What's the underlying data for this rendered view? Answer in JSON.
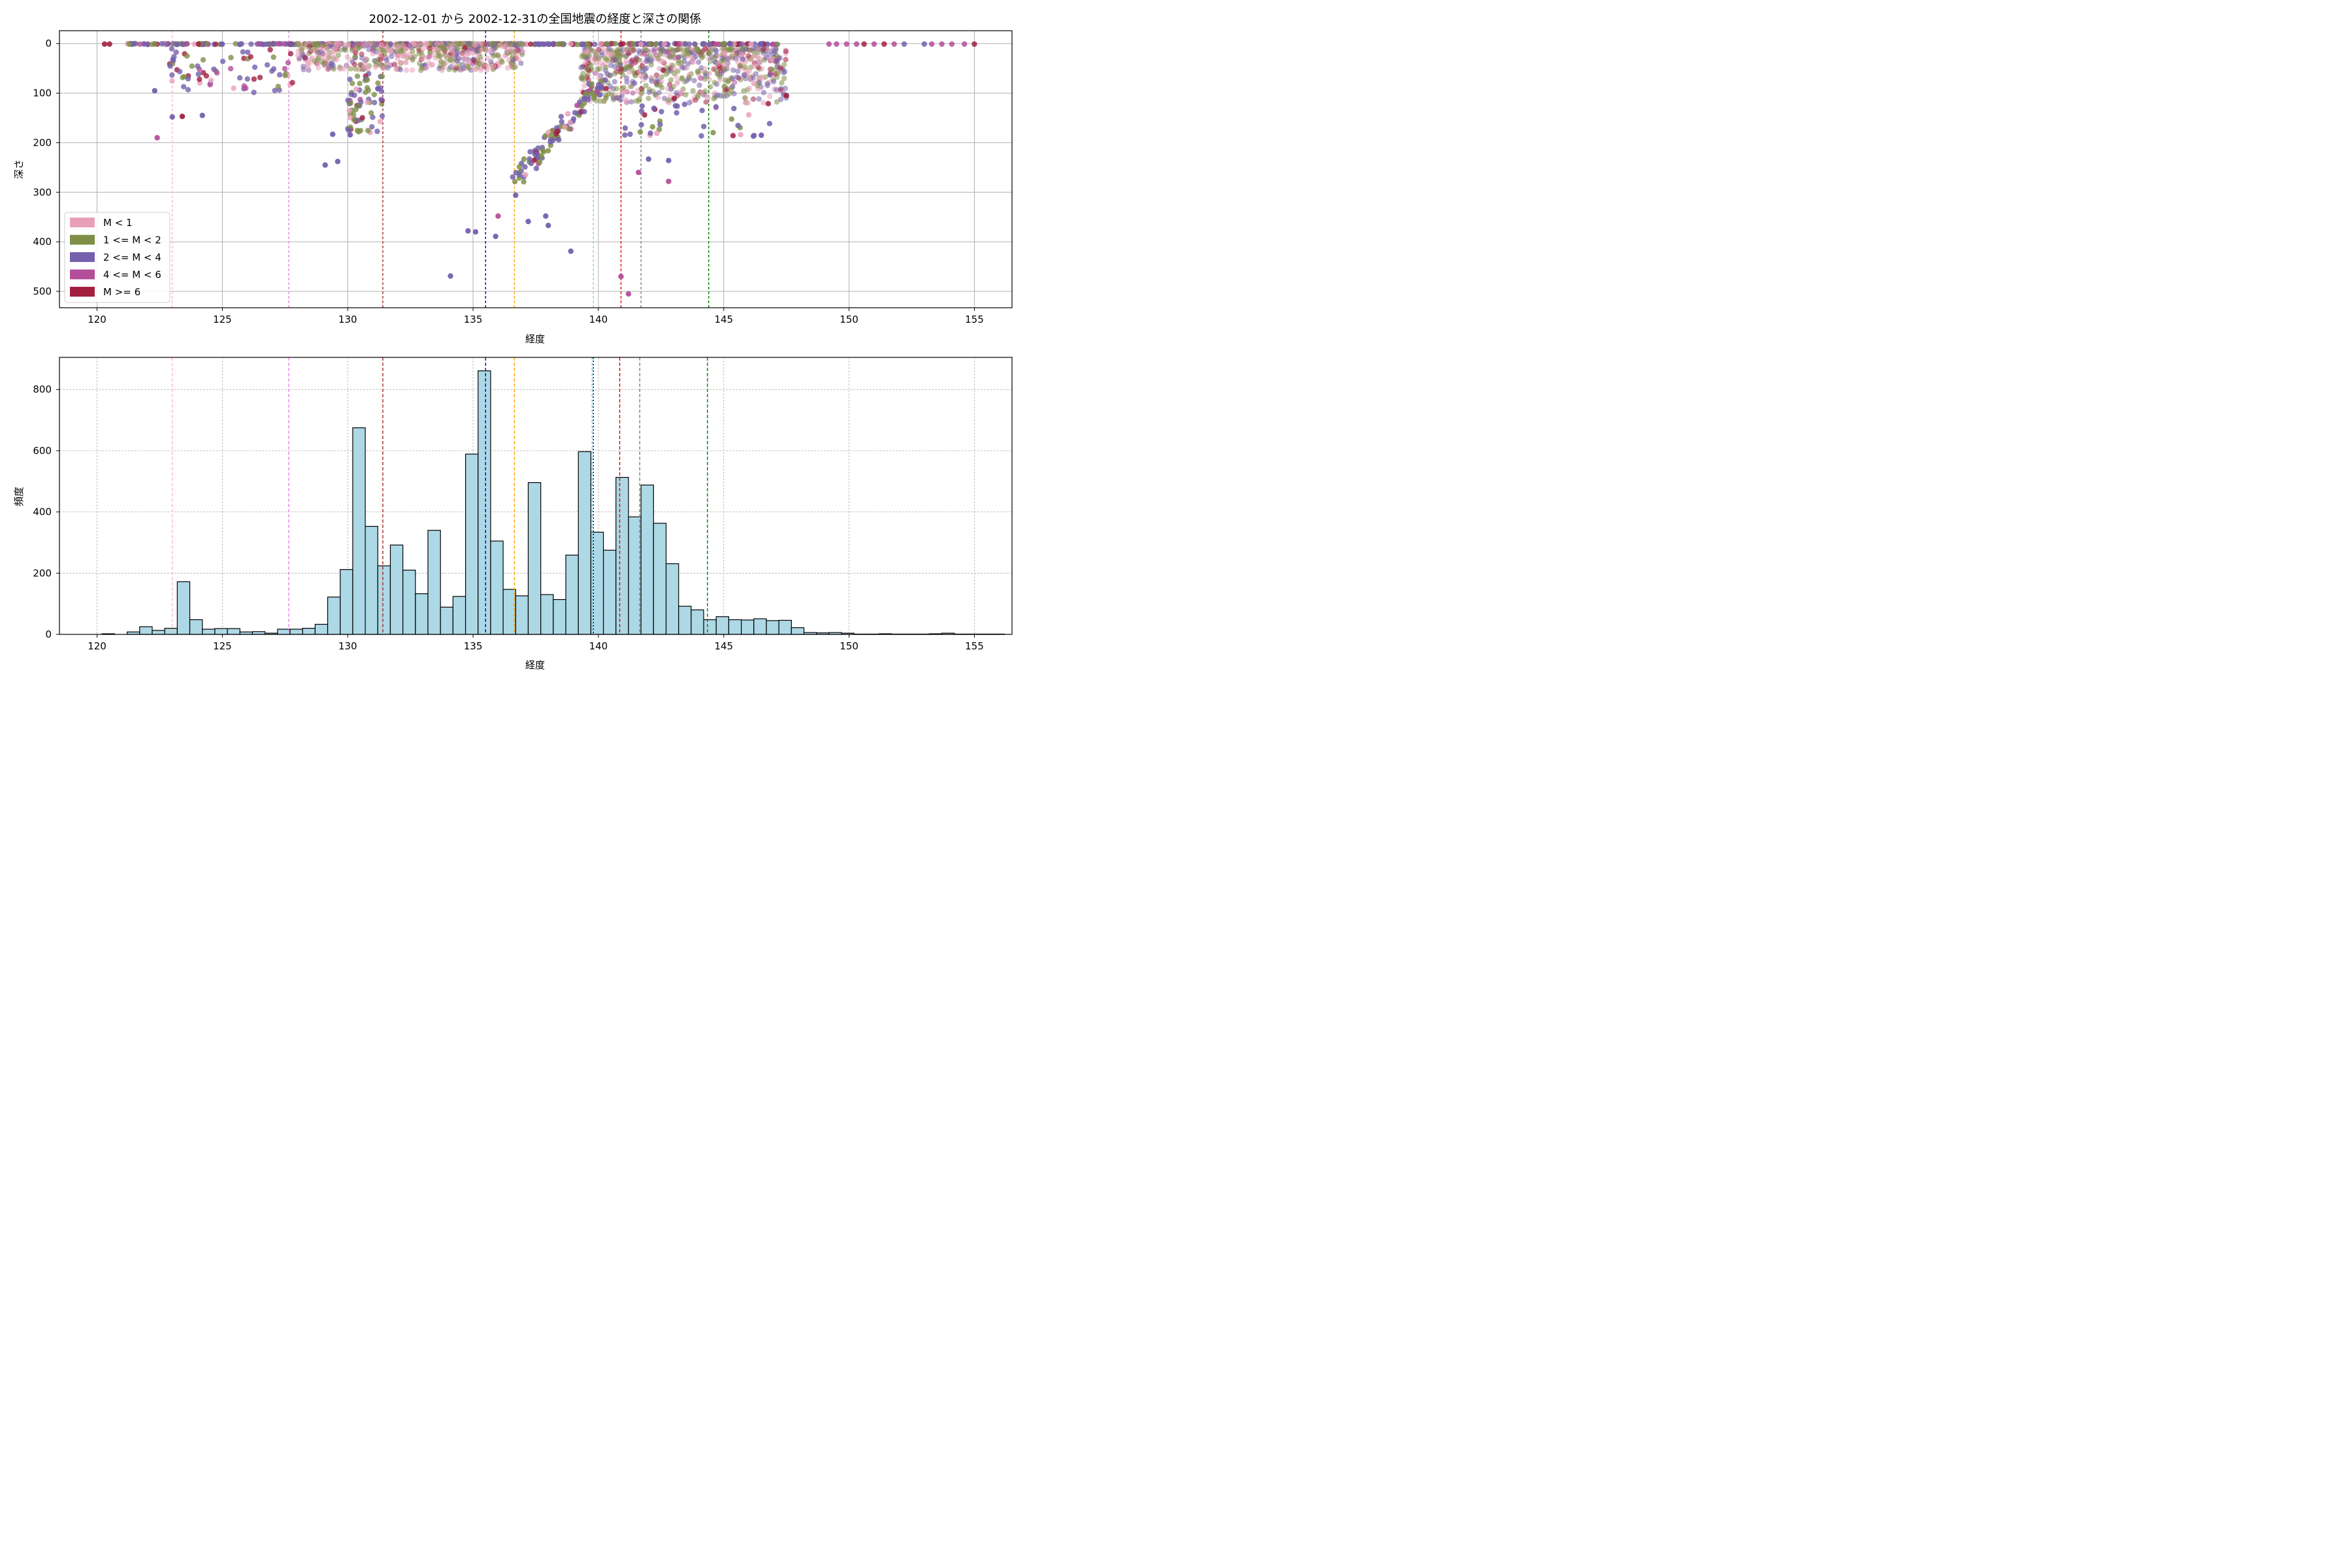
{
  "chart_data": [
    {
      "type": "scatter",
      "title": "2002-12-01 から 2002-12-31の全国地震の経度と深さの関係",
      "xlabel": "経度",
      "ylabel": "深さ",
      "xlim": [
        118.5,
        156.5
      ],
      "ylim": [
        533,
        -26
      ],
      "y_inverted": true,
      "x_ticks": [
        "120",
        "125",
        "130",
        "135",
        "140",
        "145",
        "150",
        "155"
      ],
      "y_ticks": [
        "0",
        "100",
        "200",
        "300",
        "400",
        "500"
      ],
      "grid": true,
      "legend_position": "lower-left",
      "series": [
        {
          "name": "M < 1",
          "color": "#e8a0b8"
        },
        {
          "name": "1 <= M < 2",
          "color": "#7f8f48"
        },
        {
          "name": "2 <= M < 4",
          "color": "#7460ac"
        },
        {
          "name": "4 <= M < 6",
          "color": "#b44e9a"
        },
        {
          "name": "M >= 6",
          "color": "#a21f40"
        }
      ],
      "reference_lines": [
        {
          "x": 123.0,
          "color": "#ffb6c1"
        },
        {
          "x": 127.65,
          "color": "#ee82ee"
        },
        {
          "x": 131.4,
          "color": "#a52a2a"
        },
        {
          "x": 135.5,
          "color": "#0000cd"
        },
        {
          "x": 136.65,
          "color": "#ffa500"
        },
        {
          "x": 139.8,
          "color": "#87ceeb"
        },
        {
          "x": 140.9,
          "color": "#e00000"
        },
        {
          "x": 141.7,
          "color": "#808080"
        },
        {
          "x": 144.4,
          "color": "#008000"
        }
      ],
      "outliers": [
        {
          "x": 122.4,
          "y": 190,
          "series": "4 <= M < 6"
        },
        {
          "x": 122.3,
          "y": 95,
          "series": "2 <= M < 4"
        },
        {
          "x": 123.0,
          "y": 148,
          "series": "2 <= M < 4"
        },
        {
          "x": 123.4,
          "y": 147,
          "series": "M >= 6"
        },
        {
          "x": 124.2,
          "y": 145,
          "series": "2 <= M < 4"
        },
        {
          "x": 129.1,
          "y": 245,
          "series": "2 <= M < 4"
        },
        {
          "x": 129.6,
          "y": 238,
          "series": "2 <= M < 4"
        },
        {
          "x": 129.4,
          "y": 183,
          "series": "2 <= M < 4"
        },
        {
          "x": 130.1,
          "y": 184,
          "series": "2 <= M < 4"
        },
        {
          "x": 134.1,
          "y": 469,
          "series": "2 <= M < 4"
        },
        {
          "x": 134.8,
          "y": 378,
          "series": "2 <= M < 4"
        },
        {
          "x": 135.1,
          "y": 380,
          "series": "2 <= M < 4"
        },
        {
          "x": 135.9,
          "y": 389,
          "series": "2 <= M < 4"
        },
        {
          "x": 136.0,
          "y": 348,
          "series": "4 <= M < 6"
        },
        {
          "x": 136.7,
          "y": 306,
          "series": "2 <= M < 4"
        },
        {
          "x": 137.2,
          "y": 359,
          "series": "2 <= M < 4"
        },
        {
          "x": 137.9,
          "y": 348,
          "series": "2 <= M < 4"
        },
        {
          "x": 138.0,
          "y": 367,
          "series": "2 <= M < 4"
        },
        {
          "x": 138.9,
          "y": 419,
          "series": "2 <= M < 4"
        },
        {
          "x": 140.9,
          "y": 470,
          "series": "4 <= M < 6"
        },
        {
          "x": 141.2,
          "y": 505,
          "series": "4 <= M < 6"
        },
        {
          "x": 141.6,
          "y": 260,
          "series": "4 <= M < 6"
        },
        {
          "x": 142.8,
          "y": 278,
          "series": "4 <= M < 6"
        },
        {
          "x": 142.0,
          "y": 233,
          "series": "2 <= M < 4"
        },
        {
          "x": 142.8,
          "y": 236,
          "series": "2 <= M < 4"
        },
        {
          "x": 146.5,
          "y": 185,
          "series": "2 <= M < 4"
        },
        {
          "x": 147.5,
          "y": 105,
          "series": "M >= 6"
        }
      ]
    },
    {
      "type": "bar",
      "xlabel": "経度",
      "ylabel": "頻度",
      "xlim": [
        118.5,
        156.5
      ],
      "ylim": [
        0,
        905
      ],
      "x_ticks": [
        "120",
        "125",
        "130",
        "135",
        "140",
        "145",
        "150",
        "155"
      ],
      "y_ticks": [
        "0",
        "200",
        "400",
        "600",
        "800"
      ],
      "grid": true,
      "bin_start": 120.2,
      "bin_width": 0.5,
      "bar_color": "#add8e6",
      "values": [
        2,
        0,
        8,
        25,
        13,
        20,
        172,
        48,
        17,
        19,
        19,
        8,
        9,
        4,
        17,
        17,
        20,
        33,
        122,
        212,
        675,
        353,
        224,
        292,
        210,
        133,
        340,
        89,
        124,
        589,
        861,
        305,
        147,
        126,
        496,
        130,
        114,
        259,
        597,
        334,
        275,
        513,
        384,
        488,
        363,
        231,
        92,
        80,
        48,
        58,
        48,
        47,
        51,
        45,
        46,
        22,
        6,
        5,
        6,
        4,
        1,
        1,
        2,
        1,
        1,
        1,
        2,
        4,
        1,
        1,
        1,
        1
      ],
      "reference_lines": [
        {
          "x": 123.0,
          "color": "#ffb6c1",
          "style": "dashed"
        },
        {
          "x": 127.65,
          "color": "#ee82ee",
          "style": "dashed"
        },
        {
          "x": 131.4,
          "color": "#a52a2a",
          "style": "dashed"
        },
        {
          "x": 135.5,
          "color": "#0000cd",
          "style": "dashed"
        },
        {
          "x": 136.65,
          "color": "#ffa500",
          "style": "dashed"
        },
        {
          "x": 139.75,
          "color": "#87ceeb",
          "style": "dashed"
        },
        {
          "x": 139.8,
          "color": "#000000",
          "style": "dotted"
        },
        {
          "x": 140.85,
          "color": "#e00000",
          "style": "dashed"
        },
        {
          "x": 141.65,
          "color": "#808080",
          "style": "dashed"
        },
        {
          "x": 144.35,
          "color": "#008000",
          "style": "dashed"
        }
      ]
    }
  ]
}
